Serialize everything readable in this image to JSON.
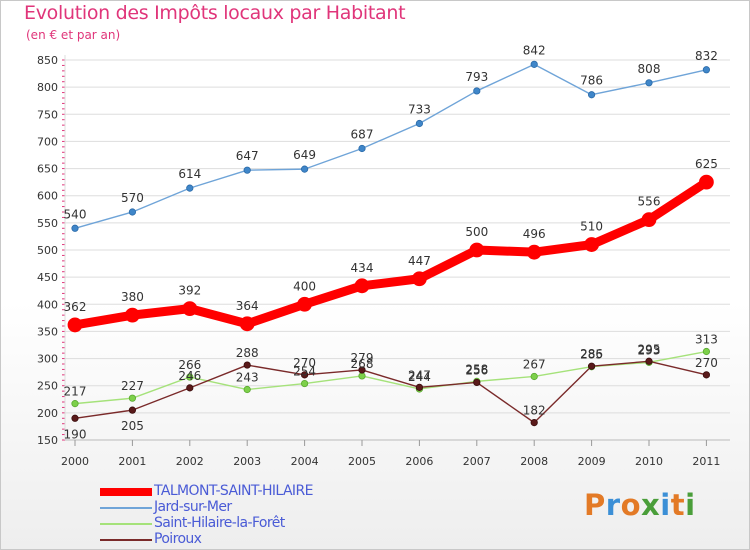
{
  "title": "Evolution des Impôts locaux par Habitant",
  "subtitle": "(en € et par an)",
  "logo": {
    "text": "Proxiti",
    "colors": [
      "#e37a26",
      "#3b8fd6",
      "#e37a26",
      "#4a9e3a",
      "#3b8fd6",
      "#e37a26",
      "#4a9e3a"
    ]
  },
  "chart_data": {
    "type": "line",
    "title": "Evolution des Impôts locaux par Habitant",
    "subtitle": "(en € et par an)",
    "xlabel": "",
    "ylabel": "",
    "x": [
      "2000",
      "2001",
      "2002",
      "2003",
      "2004",
      "2005",
      "2006",
      "2007",
      "2008",
      "2009",
      "2010",
      "2011"
    ],
    "ylim": [
      150,
      850
    ],
    "yticks": [
      150,
      200,
      250,
      300,
      350,
      400,
      450,
      500,
      550,
      600,
      650,
      700,
      750,
      800,
      850
    ],
    "grid": "horizontal",
    "legend_position": "bottom-left",
    "series": [
      {
        "name": "TALMONT-SAINT-HILAIRE",
        "color": "#ff0000",
        "values": [
          362,
          380,
          392,
          364,
          400,
          434,
          447,
          500,
          496,
          510,
          556,
          625
        ]
      },
      {
        "name": "Jard-sur-Mer",
        "color": "#6fa4d8",
        "values": [
          540,
          570,
          614,
          647,
          649,
          687,
          733,
          793,
          842,
          786,
          808,
          832
        ]
      },
      {
        "name": "Saint-Hilaire-la-Forêt",
        "color": "#a5e27a",
        "values": [
          217,
          227,
          266,
          243,
          254,
          268,
          244,
          258,
          267,
          285,
          293,
          313
        ]
      },
      {
        "name": "Poiroux",
        "color": "#7a2a2a",
        "values": [
          190,
          205,
          246,
          288,
          270,
          279,
          247,
          256,
          182,
          286,
          295,
          270
        ]
      }
    ]
  }
}
